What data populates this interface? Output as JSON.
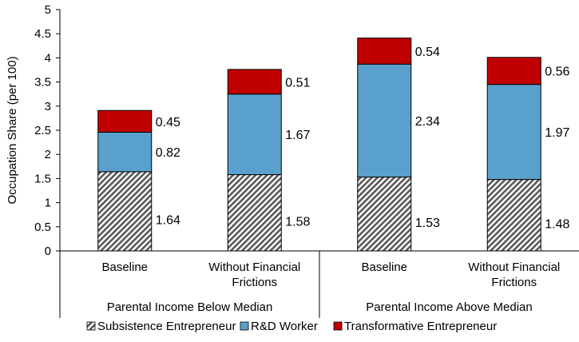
{
  "chart_data": {
    "type": "bar",
    "stacked": true,
    "ylabel": "Occupation Share (per 100)",
    "ylim": [
      0,
      5
    ],
    "yticks": [
      0,
      0.5,
      1,
      1.5,
      2,
      2.5,
      3,
      3.5,
      4,
      4.5,
      5
    ],
    "categories": [
      {
        "label_lines": [
          "Baseline"
        ],
        "group": 0
      },
      {
        "label_lines": [
          "Without Financial",
          "Frictions"
        ],
        "group": 0
      },
      {
        "label_lines": [
          "Baseline"
        ],
        "group": 1
      },
      {
        "label_lines": [
          "Without Financial",
          "Frictions"
        ],
        "group": 1
      }
    ],
    "groups": [
      "Parental Income Below Median",
      "Parental Income Above Median"
    ],
    "series": [
      {
        "name": "Subsistence Entrepreneur",
        "pattern": "hatch",
        "color": "#595959",
        "values": [
          1.64,
          1.58,
          1.53,
          1.48
        ],
        "labels": [
          "1.64",
          "1.58",
          "1.53",
          "1.48"
        ]
      },
      {
        "name": "R&D Worker",
        "color": "#5aa0cc",
        "values": [
          0.82,
          1.67,
          2.34,
          1.97
        ],
        "labels": [
          "0.82",
          "1.67",
          "2.34",
          "1.97"
        ]
      },
      {
        "name": "Transformative Entrepreneur",
        "color": "#c00000",
        "values": [
          0.45,
          0.51,
          0.54,
          0.56
        ],
        "labels": [
          "0.45",
          "0.51",
          "0.54",
          "0.56"
        ]
      }
    ],
    "grid": false,
    "legend": "bottom"
  }
}
